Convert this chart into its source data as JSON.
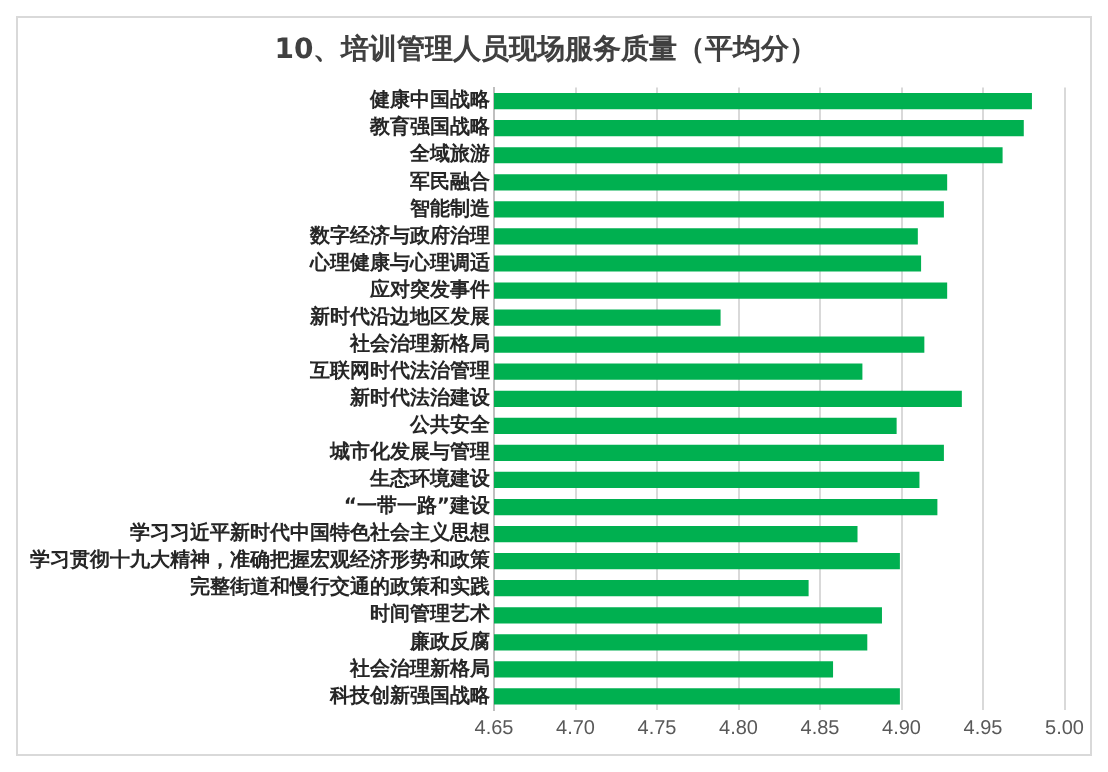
{
  "chart_data": {
    "type": "bar",
    "orientation": "horizontal",
    "title": "10、培训管理人员现场服务质量（平均分）",
    "categories": [
      "健康中国战略",
      "教育强国战略",
      "全域旅游",
      "军民融合",
      "智能制造",
      "数字经济与政府治理",
      "心理健康与心理调适",
      "应对突发事件",
      "新时代沿边地区发展",
      "社会治理新格局",
      "互联网时代法治管理",
      "新时代法治建设",
      "公共安全",
      "城市化发展与管理",
      "生态环境建设",
      "“一带一路”建设",
      "学习习近平新时代中国特色社会主义思想",
      "学习贯彻十九大精神，准确把握宏观经济形势和政策",
      "完整街道和慢行交通的政策和实践",
      "时间管理艺术",
      "廉政反腐",
      "社会治理新格局",
      "科技创新强国战略"
    ],
    "values": [
      4.98,
      4.975,
      4.962,
      4.928,
      4.926,
      4.91,
      4.912,
      4.928,
      4.789,
      4.914,
      4.876,
      4.937,
      4.897,
      4.926,
      4.911,
      4.922,
      4.873,
      4.899,
      4.843,
      4.888,
      4.879,
      4.858,
      4.899
    ],
    "color": "#00b050",
    "xlim": [
      4.65,
      5.0
    ],
    "xticks": [
      {
        "value": 4.65,
        "label": "4.65"
      },
      {
        "value": 4.7,
        "label": "4.70"
      },
      {
        "value": 4.75,
        "label": "4.75"
      },
      {
        "value": 4.8,
        "label": "4.80"
      },
      {
        "value": 4.85,
        "label": "4.85"
      },
      {
        "value": 4.9,
        "label": "4.90"
      },
      {
        "value": 4.95,
        "label": "4.95"
      },
      {
        "value": 5.0,
        "label": "5.00"
      }
    ],
    "grid": "x"
  }
}
